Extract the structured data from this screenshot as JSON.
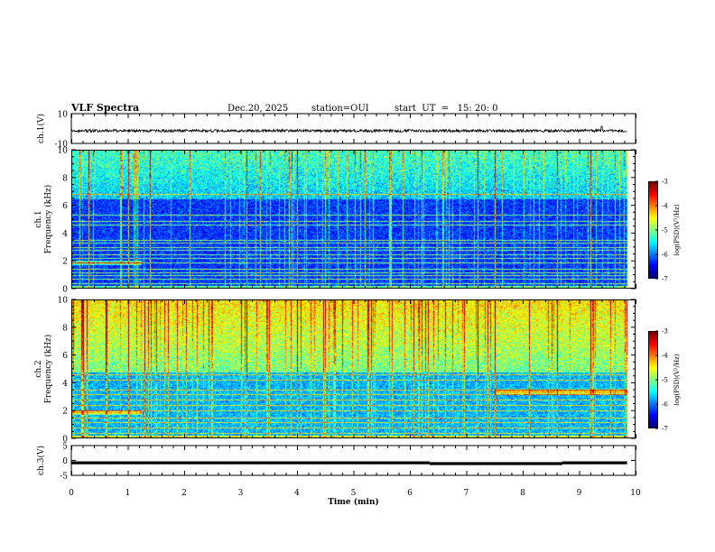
{
  "header": {
    "title": "VLF Spectra",
    "date": "Dec.20, 2025",
    "station": "station=OUI",
    "start": "start  UT  =   15: 20: 0"
  },
  "colors": {
    "axis": "#000000",
    "trace": "#000000",
    "background": "#ffffff"
  },
  "chart_data": [
    {
      "type": "line",
      "id": "ch1-waveform",
      "ylabel": "ch.1(V)",
      "ylim": [
        -10,
        10
      ],
      "yticks": [
        "10",
        "-10"
      ],
      "x_range_min": [
        0,
        9.85
      ],
      "series": [
        {
          "name": "ch.1 voltage",
          "mean": -1.5,
          "noise_amplitude": 0.9,
          "spike_at_min": 9.4,
          "spike_value": 1.5
        }
      ]
    },
    {
      "type": "heatmap",
      "id": "ch1-spectrogram",
      "ylabel_line1": "ch.1",
      "ylabel_line2": "Frequency  (kHz)",
      "ylim": [
        0,
        10
      ],
      "yticks": [
        "0",
        "2",
        "4",
        "6",
        "8",
        "10"
      ],
      "colorbar": {
        "label": "log(PSD)(V²/Hz)",
        "range": [
          -7,
          -3
        ],
        "ticks": [
          "-3",
          "-4",
          "-5",
          "-6",
          "-7"
        ]
      },
      "features": {
        "background_level": -6.3,
        "upper_band_kHz": [
          6.5,
          10
        ],
        "upper_band_level": -5.2,
        "horizontal_lines_kHz": [
          0.4,
          0.7,
          1.0,
          1.2,
          1.4,
          1.9,
          2.2,
          2.5,
          2.8,
          3.0,
          3.3,
          3.5,
          4.6,
          4.85,
          5.3,
          6.8
        ],
        "tone_kHz": 1.9,
        "tone_end_min": 1.25,
        "sferic_count": 80,
        "strong_sferic_times_min": [
          0.3,
          1.0,
          1.4,
          3.1,
          4.0,
          7.2,
          7.5,
          8.6,
          9.2
        ]
      }
    },
    {
      "type": "heatmap",
      "id": "ch2-spectrogram",
      "ylabel_line1": "ch.2",
      "ylabel_line2": "Frequency  (kHz)",
      "ylim": [
        0,
        10
      ],
      "yticks": [
        "0",
        "2",
        "4",
        "6",
        "8",
        "10"
      ],
      "colorbar": {
        "label": "log(PSD)(V²/Hz)",
        "range": [
          -7,
          -3
        ],
        "ticks": [
          "-3",
          "-4",
          "-5",
          "-6",
          "-7"
        ]
      },
      "features": {
        "background_level": -5.8,
        "upper_band_kHz": [
          4.8,
          10
        ],
        "upper_band_level": -4.4,
        "horizontal_lines_kHz": [
          0.4,
          0.8,
          1.2,
          1.5,
          2.0,
          2.4,
          2.8,
          3.2,
          3.5,
          4.2,
          4.6
        ],
        "tone_kHz": 1.9,
        "tone_end_min": 1.25,
        "late_band_kHz": 3.4,
        "late_band_start_min": 7.5,
        "sferic_count": 90,
        "strong_sferic_times_min": [
          0.2,
          0.6,
          1.0,
          1.3,
          3.1,
          4.0,
          7.2,
          7.5,
          8.6,
          9.2
        ]
      }
    },
    {
      "type": "line",
      "id": "ch3-waveform",
      "ylabel": "ch.3(V)",
      "ylim": [
        -5,
        5
      ],
      "yticks": [
        "5",
        "0",
        "-5"
      ],
      "x_range_min": [
        0,
        9.85
      ],
      "series": [
        {
          "name": "ch.3 voltage",
          "segments": [
            {
              "x": [
                0,
                6.35
              ],
              "y": -0.8
            },
            {
              "x": [
                6.35,
                8.7
              ],
              "y": -1.05
            },
            {
              "x": [
                8.7,
                9.85
              ],
              "y": -0.8
            }
          ]
        }
      ]
    }
  ],
  "xaxis": {
    "label": "Time  (min)",
    "range": [
      0,
      10
    ],
    "ticks": [
      "0",
      "1",
      "2",
      "3",
      "4",
      "5",
      "6",
      "7",
      "8",
      "9",
      "10"
    ]
  }
}
